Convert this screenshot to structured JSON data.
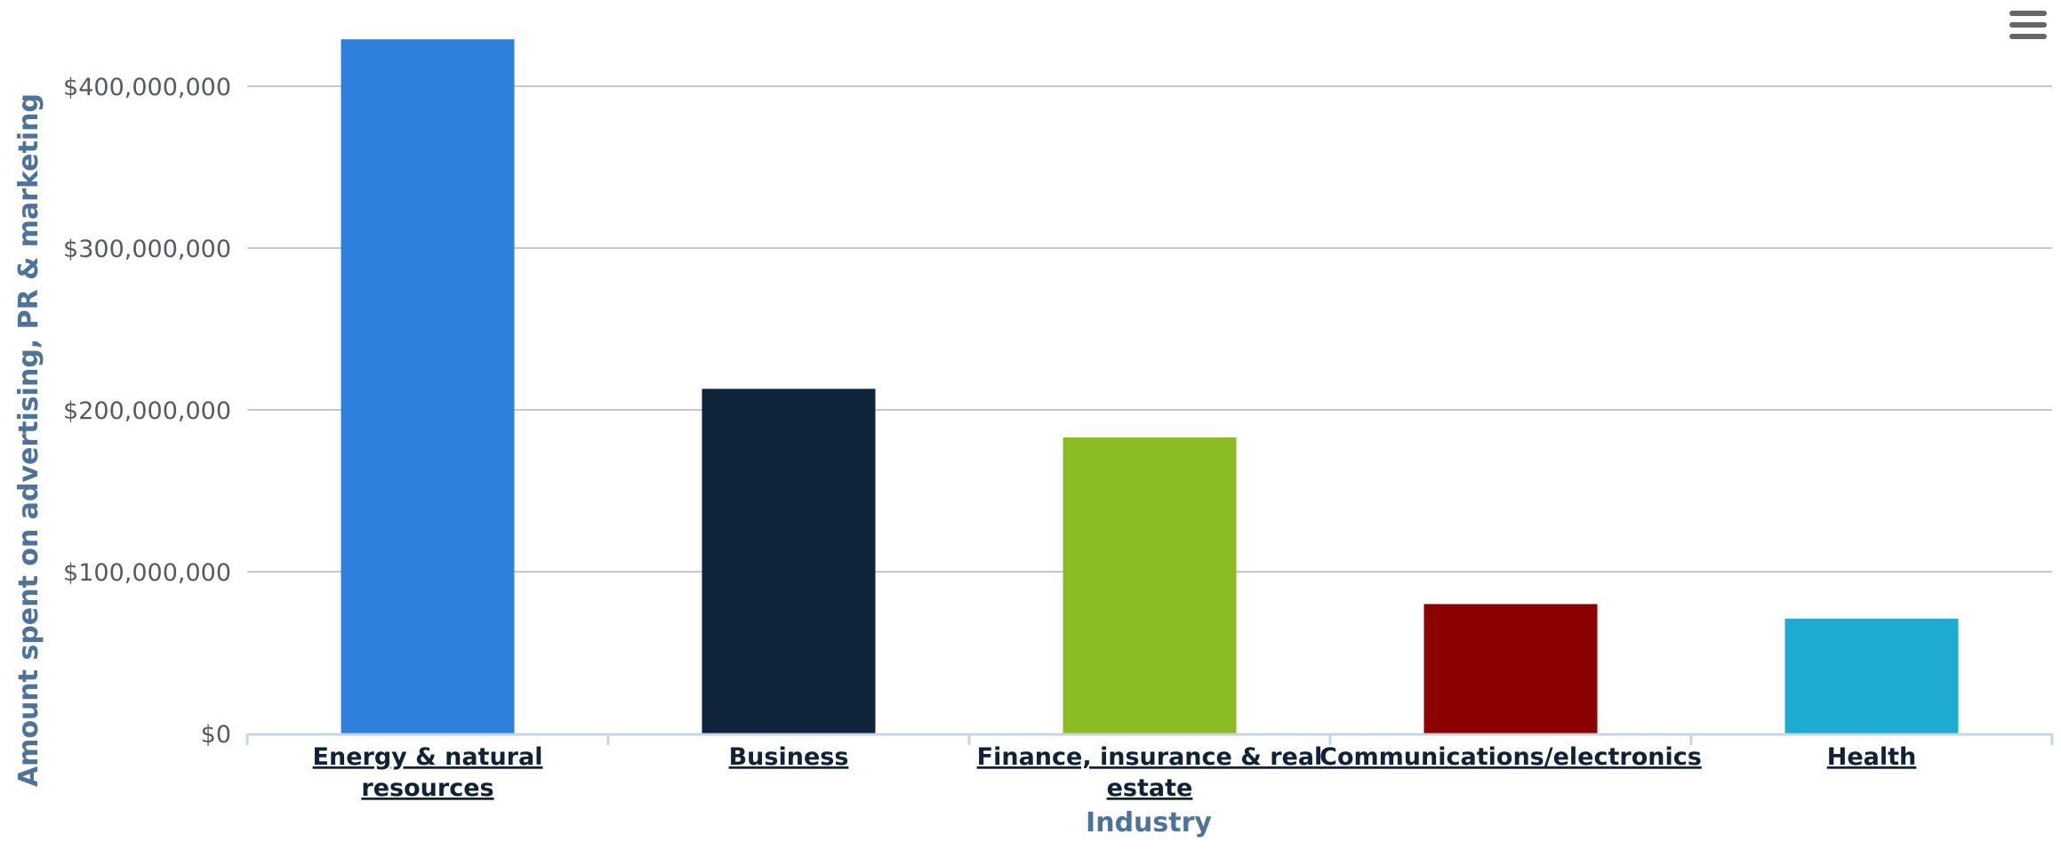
{
  "menu": {
    "icon": "hamburger-menu-icon"
  },
  "chart_data": {
    "type": "bar",
    "title": "",
    "xlabel": "Industry",
    "ylabel": "Amount spent on advertising, PR & marketing",
    "categories": [
      "Energy & natural resources",
      "Business",
      "Finance, insurance & real estate",
      "Communications/electronics",
      "Health"
    ],
    "values": [
      429000000,
      213000000,
      183000000,
      80000000,
      71000000
    ],
    "colors": [
      "#2f80dc",
      "#0f233a",
      "#8cbc24",
      "#8c0000",
      "#1daccf"
    ],
    "ylim": [
      0,
      429000000
    ],
    "yticks": [
      0,
      100000000,
      200000000,
      300000000,
      400000000
    ],
    "ytick_labels": [
      "$0",
      "$100,000,000",
      "$200,000,000",
      "$300,000,000",
      "$400,000,000"
    ],
    "grid": true,
    "legend": "none"
  }
}
